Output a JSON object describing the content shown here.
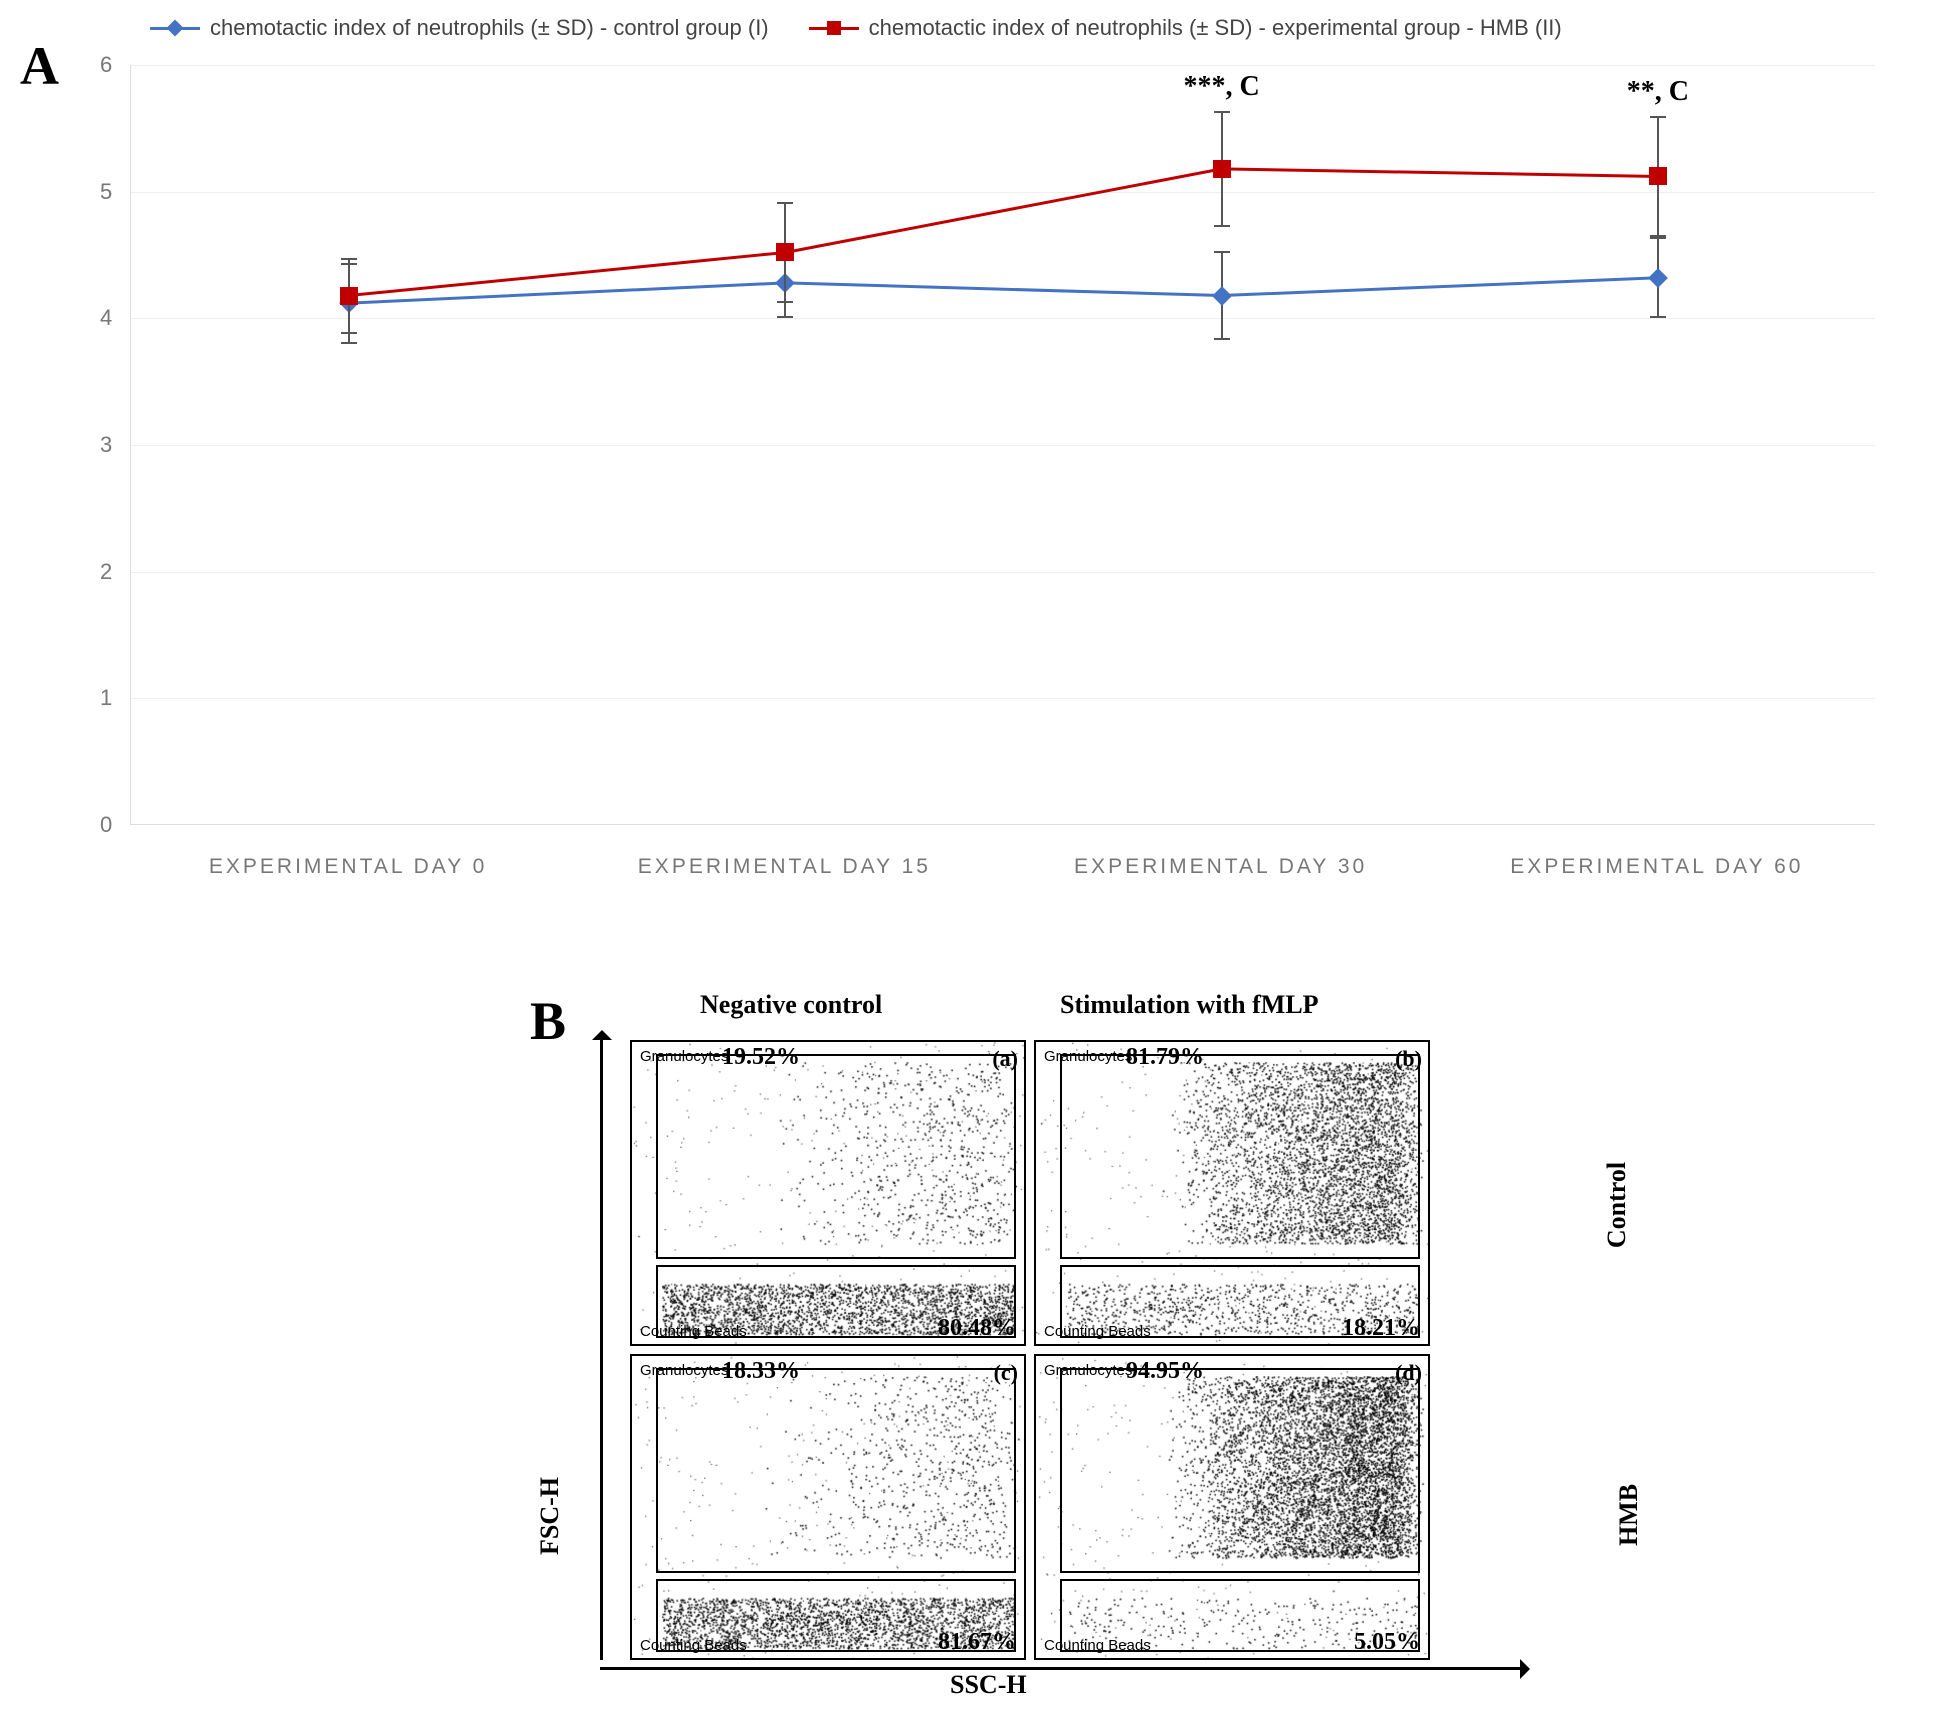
{
  "panelA": {
    "label": "A",
    "legend": {
      "control": {
        "label": "chemotactic index of neutrophils (± SD) - control group (I)",
        "color": "#4472c4",
        "marker": "diamond"
      },
      "experimental": {
        "label": "chemotactic index of neutrophils (± SD) - experimental group - HMB (II)",
        "color": "#c00000",
        "marker": "square"
      }
    },
    "ylim": [
      0,
      6
    ],
    "yticks": [
      0,
      1,
      2,
      3,
      4,
      5,
      6
    ],
    "xcategories": [
      "EXPERIMENTAL DAY 0",
      "EXPERIMENTAL DAY 15",
      "EXPERIMENTAL DAY 30",
      "EXPERIMENTAL DAY 60"
    ],
    "xpositions_pct": [
      12.5,
      37.5,
      62.5,
      87.5
    ],
    "grid_color": "#eeeeee",
    "series": {
      "control": {
        "color": "#4472c4",
        "line_width": 3,
        "values": [
          4.12,
          4.28,
          4.18,
          4.32
        ],
        "errors": [
          0.32,
          0.28,
          0.35,
          0.32
        ]
      },
      "experimental": {
        "color": "#c00000",
        "line_width": 3,
        "values": [
          4.18,
          4.52,
          5.18,
          5.12
        ],
        "errors": [
          0.3,
          0.4,
          0.46,
          0.48
        ]
      }
    },
    "significance": [
      {
        "xindex": 2,
        "text": "***, C"
      },
      {
        "xindex": 3,
        "text": "**, C"
      }
    ],
    "axis_font_size": 22,
    "background_color": "#ffffff"
  },
  "panelB": {
    "label": "B",
    "x_axis": "SSC-H",
    "y_axis": "FSC-H",
    "columns": [
      "Negative control",
      "Stimulation with fMLP"
    ],
    "rows": [
      "Control",
      "HMB"
    ],
    "plots": [
      {
        "id": "a",
        "granulocytes_pct": "19.52%",
        "beads_pct": "80.48%",
        "gran_label": "Granulocytes",
        "beads_label": "Counting Beads",
        "density": "low"
      },
      {
        "id": "b",
        "granulocytes_pct": "81.79%",
        "beads_pct": "18.21%",
        "gran_label": "Granulocytes",
        "beads_label": "Counting Beads",
        "density": "high"
      },
      {
        "id": "c",
        "granulocytes_pct": "18.33%",
        "beads_pct": "81.67%",
        "gran_label": "Granulocytes",
        "beads_label": "Counting Beads",
        "density": "low"
      },
      {
        "id": "d",
        "granulocytes_pct": "94.95%",
        "beads_pct": "5.05%",
        "gran_label": "Granulocytes",
        "beads_label": "Counting Beads",
        "density": "very-high"
      }
    ],
    "gate_upper": {
      "left_pct": 6,
      "top_pct": 4,
      "width_pct": 92,
      "height_pct": 68
    },
    "gate_lower": {
      "left_pct": 6,
      "top_pct": 74,
      "width_pct": 92,
      "height_pct": 24
    },
    "font_size_header": 26,
    "font_size_pct": 24
  }
}
